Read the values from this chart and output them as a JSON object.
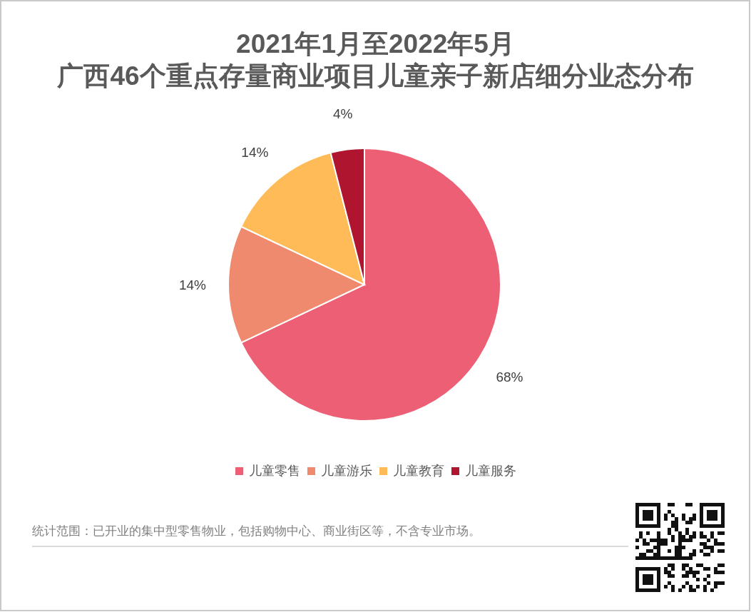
{
  "chart_data": {
    "type": "pie",
    "title": "2021年1月至2022年5月",
    "subtitle": "广西46个重点存量商业项目儿童亲子新店细分业态分布",
    "categories": [
      "儿童零售",
      "儿童游乐",
      "儿童教育",
      "儿童服务"
    ],
    "values": [
      68,
      14,
      14,
      4
    ],
    "colors": [
      "#ec5f74",
      "#f08a6e",
      "#ffbb57",
      "#b01530"
    ],
    "value_labels": [
      "68%",
      "14%",
      "14%",
      "4%"
    ],
    "legend": "bottom",
    "annotations": [
      "统计范围：已开业的集中型零售物业，包括购物中心、商业街区等，不含专业市场。"
    ]
  }
}
